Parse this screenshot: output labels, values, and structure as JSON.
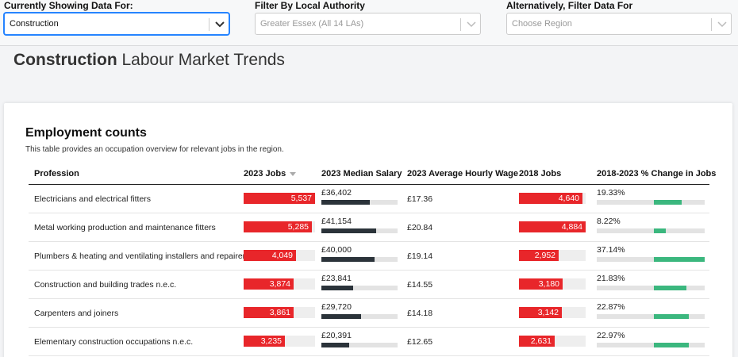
{
  "filters": {
    "showing": {
      "label": "Currently Showing Data For:",
      "value": "Construction"
    },
    "authority": {
      "label": "Filter By Local Authority",
      "value": "Greater Essex (All 14 LAs)"
    },
    "region": {
      "label": "Alternatively, Filter Data For",
      "placeholder": "Choose Region"
    }
  },
  "page": {
    "title_bold": "Construction",
    "title_rest": " Labour Market Trends"
  },
  "card": {
    "title": "Employment counts",
    "description": "This table provides an occupation overview for relevant jobs in the region."
  },
  "table": {
    "headers": {
      "profession": "Profession",
      "jobs_2023": "2023 Jobs",
      "median_salary": "2023 Median Salary",
      "hourly_wage": "2023 Average Hourly Wage",
      "jobs_2018": "2018 Jobs",
      "change": "2018-2023 % Change in Jobs"
    },
    "rows": [
      {
        "profession": "Electricians and electrical fitters",
        "jobs_2023": "5,537",
        "jobs_2023_frac": 1.0,
        "salary": "£36,402",
        "salary_frac": 0.64,
        "hourly": "£17.36",
        "jobs_2018": "4,640",
        "jobs_2018_frac": 0.95,
        "change": "19.33%",
        "change_from": 0.53,
        "change_to": 0.79
      },
      {
        "profession": "Metal working production and maintenance fitters",
        "jobs_2023": "5,285",
        "jobs_2023_frac": 0.955,
        "salary": "£41,154",
        "salary_frac": 0.72,
        "hourly": "£20.84",
        "jobs_2018": "4,884",
        "jobs_2018_frac": 1.0,
        "change": "8.22%",
        "change_from": 0.53,
        "change_to": 0.64
      },
      {
        "profession": "Plumbers & heating and ventilating installers and repairers",
        "jobs_2023": "4,049",
        "jobs_2023_frac": 0.73,
        "salary": "£40,000",
        "salary_frac": 0.7,
        "hourly": "£19.14",
        "jobs_2018": "2,952",
        "jobs_2018_frac": 0.6,
        "change": "37.14%",
        "change_from": 0.53,
        "change_to": 1.0
      },
      {
        "profession": "Construction and building trades n.e.c.",
        "jobs_2023": "3,874",
        "jobs_2023_frac": 0.7,
        "salary": "£23,841",
        "salary_frac": 0.42,
        "hourly": "£14.55",
        "jobs_2018": "3,180",
        "jobs_2018_frac": 0.65,
        "change": "21.83%",
        "change_from": 0.53,
        "change_to": 0.83
      },
      {
        "profession": "Carpenters and joiners",
        "jobs_2023": "3,861",
        "jobs_2023_frac": 0.7,
        "salary": "£29,720",
        "salary_frac": 0.52,
        "hourly": "£14.18",
        "jobs_2018": "3,142",
        "jobs_2018_frac": 0.64,
        "change": "22.87%",
        "change_from": 0.53,
        "change_to": 0.85
      },
      {
        "profession": "Elementary construction occupations n.e.c.",
        "jobs_2023": "3,235",
        "jobs_2023_frac": 0.58,
        "salary": "£20,391",
        "salary_frac": 0.36,
        "hourly": "£12.65",
        "jobs_2018": "2,631",
        "jobs_2018_frac": 0.54,
        "change": "22.97%",
        "change_from": 0.53,
        "change_to": 0.85
      }
    ]
  },
  "colors": {
    "jobs_bar": "#e8262a",
    "salary_bar": "#2b333a",
    "change_bar": "#3bb77e",
    "focus": "#2684ff"
  },
  "icons": {
    "dropdown": "chevron-down-icon",
    "sort": "sort-desc-icon"
  }
}
